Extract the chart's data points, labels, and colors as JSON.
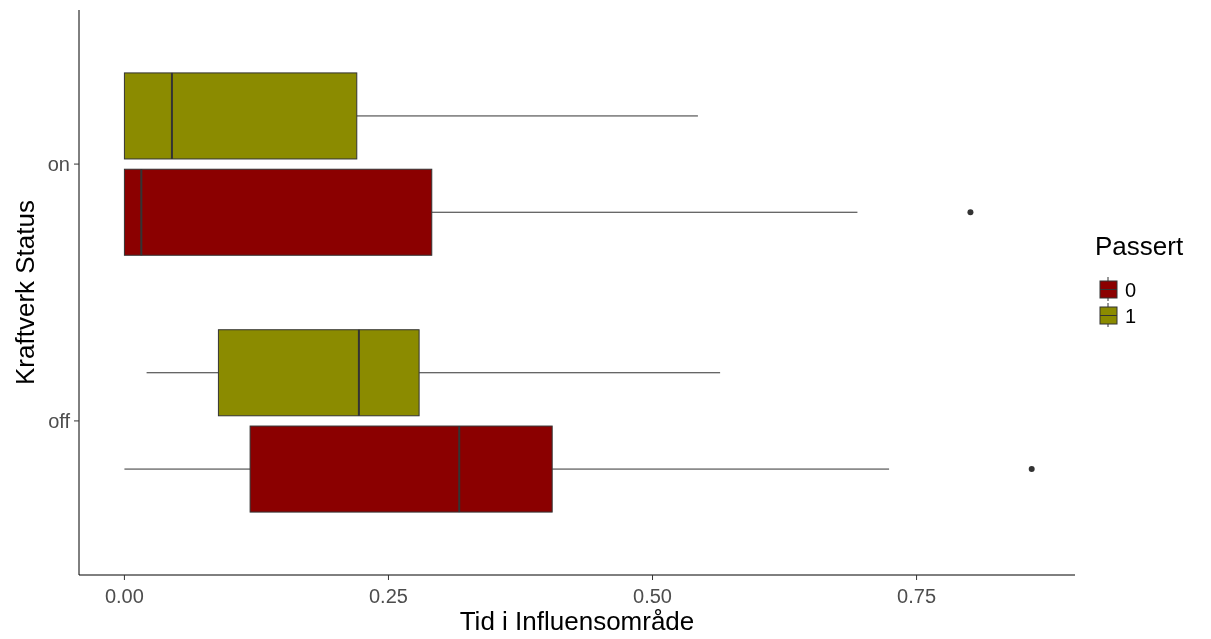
{
  "chart_data": {
    "type": "box",
    "orientation": "horizontal",
    "categories": [
      "on",
      "off"
    ],
    "xlabel": "Tid i Influensområde",
    "ylabel": "Kraftverk Status",
    "legend_title": "Passert",
    "legend": "right",
    "grid": false,
    "xlim": [
      -0.043,
      0.9
    ],
    "xticks": [
      {
        "value": 0,
        "label": "0.00"
      },
      {
        "value": 0.25,
        "label": "0.25"
      },
      {
        "value": 0.5,
        "label": "0.50"
      },
      {
        "value": 0.75,
        "label": "0.75"
      }
    ],
    "series": [
      {
        "name": "0",
        "color": "#8b0000",
        "boxes": [
          {
            "low": 0,
            "q1": 0,
            "median": 0.016,
            "q3": 0.291,
            "high": 0.694,
            "outliers": [
              0.801
            ]
          },
          {
            "low": 0,
            "q1": 0.119,
            "median": 0.317,
            "q3": 0.405,
            "high": 0.724,
            "outliers": [
              0.859
            ]
          }
        ]
      },
      {
        "name": "1",
        "color": "#8b8b00",
        "boxes": [
          {
            "low": 0,
            "q1": 0,
            "median": 0.045,
            "q3": 0.22,
            "high": 0.543
          },
          {
            "low": 0.021,
            "q1": 0.089,
            "median": 0.222,
            "q3": 0.279,
            "high": 0.564
          }
        ]
      }
    ]
  }
}
